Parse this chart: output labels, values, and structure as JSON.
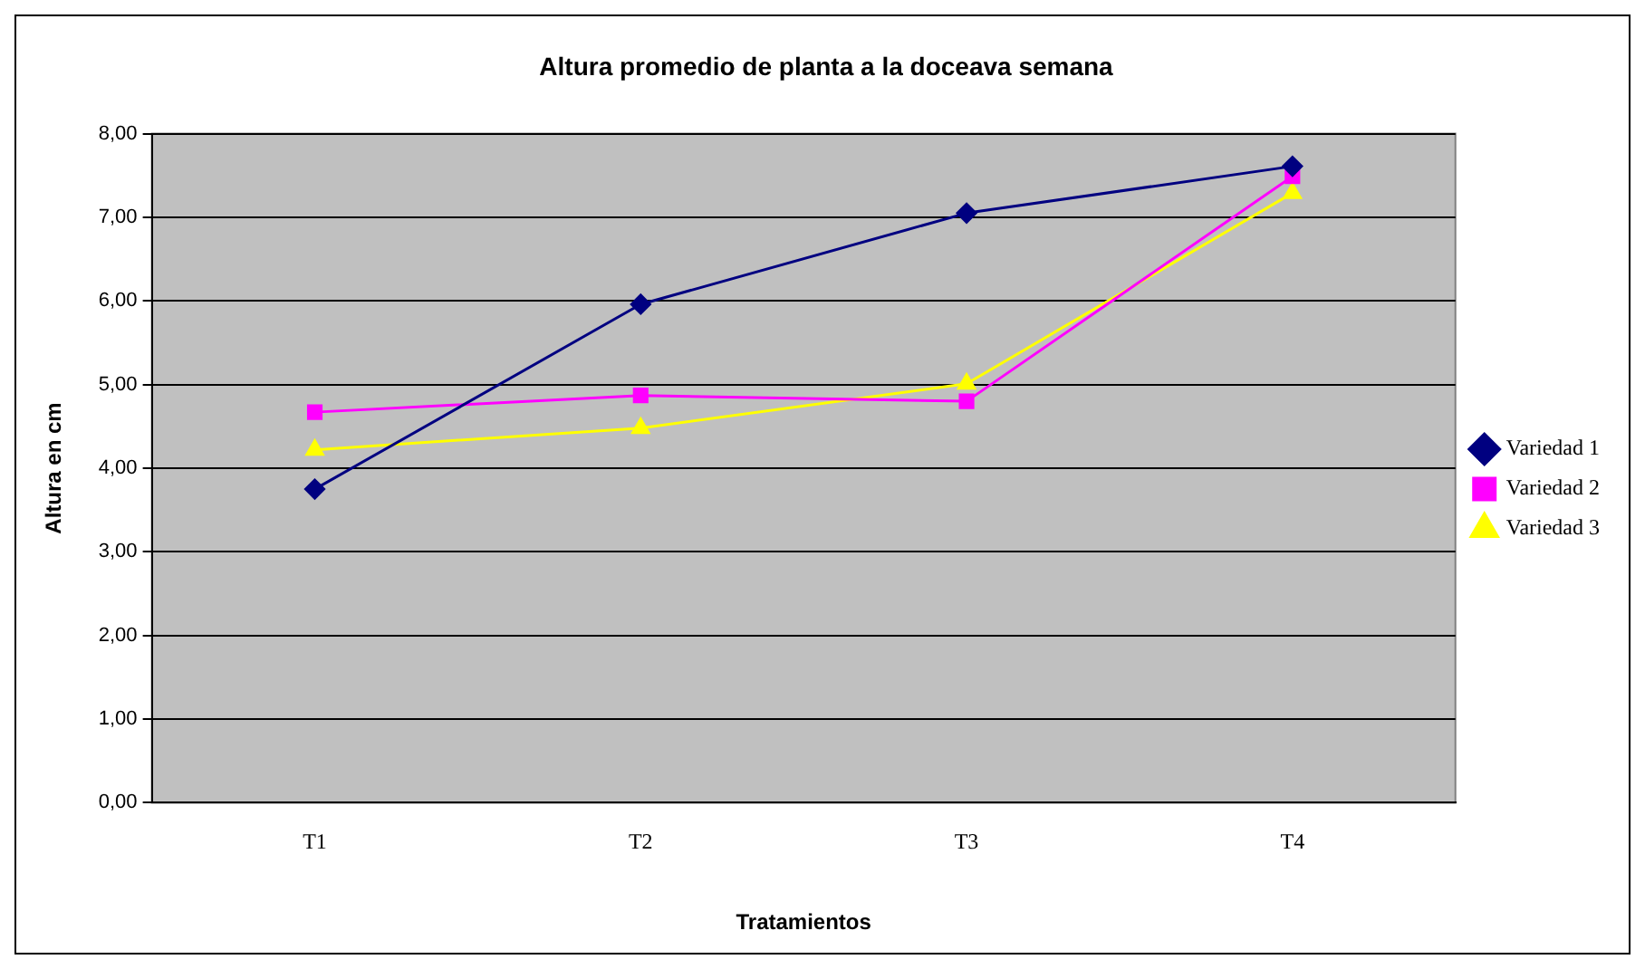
{
  "chart_data": {
    "type": "line",
    "title": "Altura promedio de planta a la doceava semana",
    "xlabel": "Tratamientos",
    "ylabel": "Altura en cm",
    "categories": [
      "T1",
      "T2",
      "T3",
      "T4"
    ],
    "series": [
      {
        "name": "Variedad 1",
        "color": "#000080",
        "marker": "diamond",
        "values": [
          3.75,
          5.96,
          7.05,
          7.61
        ]
      },
      {
        "name": "Variedad 2",
        "color": "#ff00ff",
        "marker": "square",
        "values": [
          4.67,
          4.87,
          4.8,
          7.49
        ]
      },
      {
        "name": "Variedad 3",
        "color": "#ffff00",
        "marker": "triangle",
        "values": [
          4.22,
          4.48,
          5.01,
          7.29
        ]
      }
    ],
    "ylim": [
      0,
      8
    ],
    "yticks": [
      {
        "value": 0,
        "label": "0,00"
      },
      {
        "value": 1,
        "label": "1,00"
      },
      {
        "value": 2,
        "label": "2,00"
      },
      {
        "value": 3,
        "label": "3,00"
      },
      {
        "value": 4,
        "label": "4,00"
      },
      {
        "value": 5,
        "label": "5,00"
      },
      {
        "value": 6,
        "label": "6,00"
      },
      {
        "value": 7,
        "label": "7,00"
      },
      {
        "value": 8,
        "label": "8,00"
      }
    ],
    "grid": "y",
    "legend": "right",
    "line_style": "solid"
  }
}
